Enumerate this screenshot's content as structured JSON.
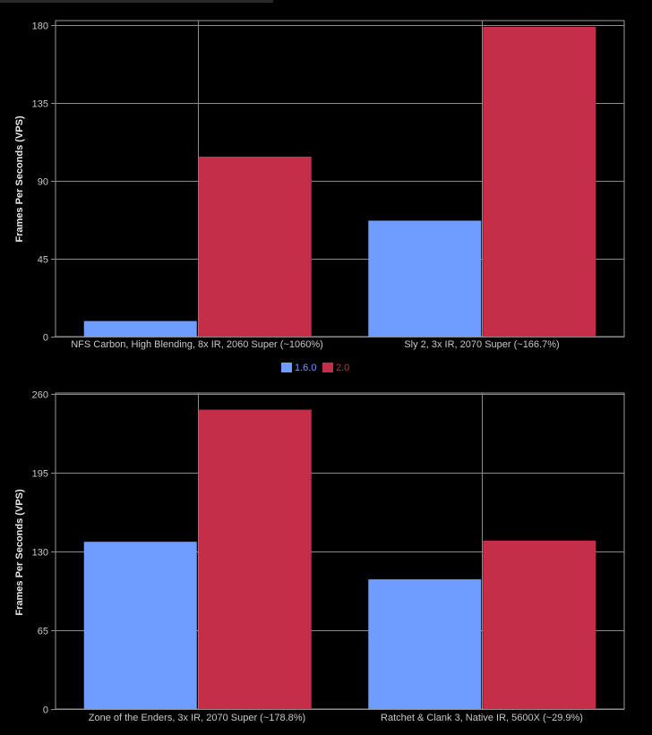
{
  "legend": [
    {
      "name": "1.6.0",
      "color": "#6f9dff"
    },
    {
      "name": "2.0",
      "color": "#c52e49"
    }
  ],
  "chart_data": [
    {
      "type": "bar",
      "ylabel": "Frames Per Seconds (VPS)",
      "categories": [
        "NFS Carbon, High Blending, 8x IR, 2060 Super (~1060%)",
        "Sly 2, 3x IR, 2070 Super (~166.7%)"
      ],
      "series": [
        {
          "name": "1.6.0",
          "color": "#6f9dff",
          "values": [
            9,
            67
          ]
        },
        {
          "name": "2.0",
          "color": "#c52e49",
          "values": [
            104,
            179
          ]
        }
      ],
      "ylim": [
        0,
        180
      ],
      "yticks": [
        0,
        45,
        90,
        135,
        180
      ],
      "grid": true
    },
    {
      "type": "bar",
      "ylabel": "Frames Per Seconds (VPS)",
      "categories": [
        "Zone of the Enders, 3x IR, 2070 Super (~178.8%)",
        "Ratchet & Clank 3, Native IR, 5600X (~29.9%)"
      ],
      "series": [
        {
          "name": "1.6.0",
          "color": "#6f9dff",
          "values": [
            138,
            107
          ]
        },
        {
          "name": "2.0",
          "color": "#c52e49",
          "values": [
            247,
            139
          ]
        }
      ],
      "ylim": [
        0,
        260
      ],
      "yticks": [
        0,
        65,
        130,
        195,
        260
      ],
      "grid": true
    }
  ]
}
